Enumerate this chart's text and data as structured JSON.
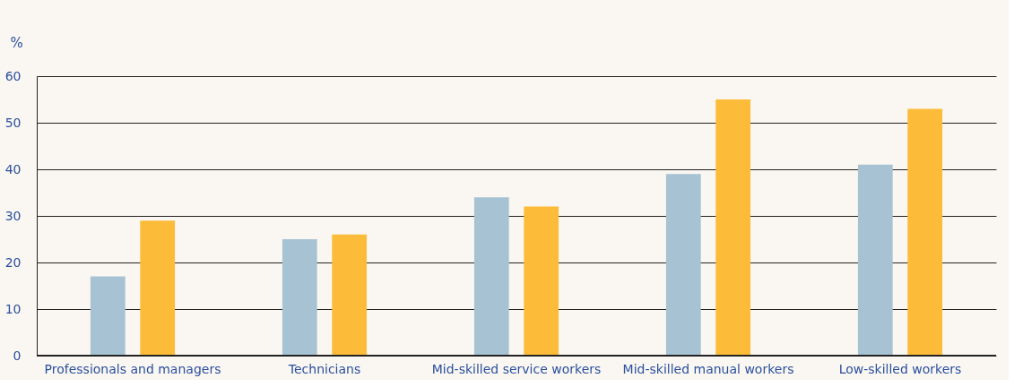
{
  "chart_data": {
    "type": "bar",
    "ylabel": "%",
    "categories": [
      "Professionals and managers",
      "Technicians",
      "Mid-skilled service workers",
      "Mid-skilled manual workers",
      "Low-skilled workers"
    ],
    "series": [
      {
        "color": "#a7c3d3",
        "values": [
          17,
          25,
          34,
          39,
          41
        ]
      },
      {
        "color": "#fdbb3a",
        "values": [
          29,
          26,
          32,
          55,
          53
        ]
      }
    ],
    "ylim": [
      0,
      60
    ],
    "yticks": [
      0,
      10,
      20,
      30,
      40,
      50,
      60
    ],
    "grid": "y",
    "legend": false
  }
}
